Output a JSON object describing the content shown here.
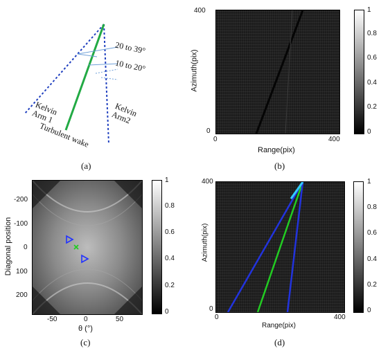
{
  "panel_a": {
    "caption": "(a)",
    "angle_outer": "20 to 39°",
    "angle_inner": "10 to 20°",
    "kelvin_arm1": [
      "Kelvin",
      "Arm 1"
    ],
    "kelvin_arm2": [
      "Kelvin",
      "Arm2"
    ],
    "turbulent": "Turbulent wake"
  },
  "panel_b": {
    "caption": "(b)",
    "xlabel": "Range(pix)",
    "ylabel": "Azimuth(pix)",
    "x_ticks": [
      "0",
      "400"
    ],
    "y_ticks": [
      "400",
      "0"
    ],
    "colorbar_ticks": [
      "1",
      "0.8",
      "0.6",
      "0.4",
      "0.2",
      "0"
    ]
  },
  "panel_c": {
    "caption": "(c)",
    "xlabel": "θ (°)",
    "ylabel": "Diagonal position",
    "x_ticks": [
      "-50",
      "0",
      "50"
    ],
    "y_ticks": [
      "-200",
      "-100",
      "0",
      "100",
      "200"
    ],
    "colorbar_ticks": [
      "1",
      "0.8",
      "0.6",
      "0.4",
      "0.2",
      "0"
    ]
  },
  "panel_d": {
    "caption": "(d)",
    "xlabel": "Range(pix)",
    "ylabel": "Azimuth(pix)",
    "x_ticks": [
      "0",
      "400"
    ],
    "y_ticks": [
      "400",
      "0"
    ],
    "colorbar_ticks": [
      "1",
      "0.8",
      "0.6",
      "0.4",
      "0.2",
      "0"
    ]
  },
  "colors": {
    "kelvin_dashed": "#1f3fbf",
    "turbulent_wake": "#22aa44",
    "detected_arm": "#2233dd",
    "detected_wake": "#22cc22",
    "apex": "#33ccff"
  }
}
